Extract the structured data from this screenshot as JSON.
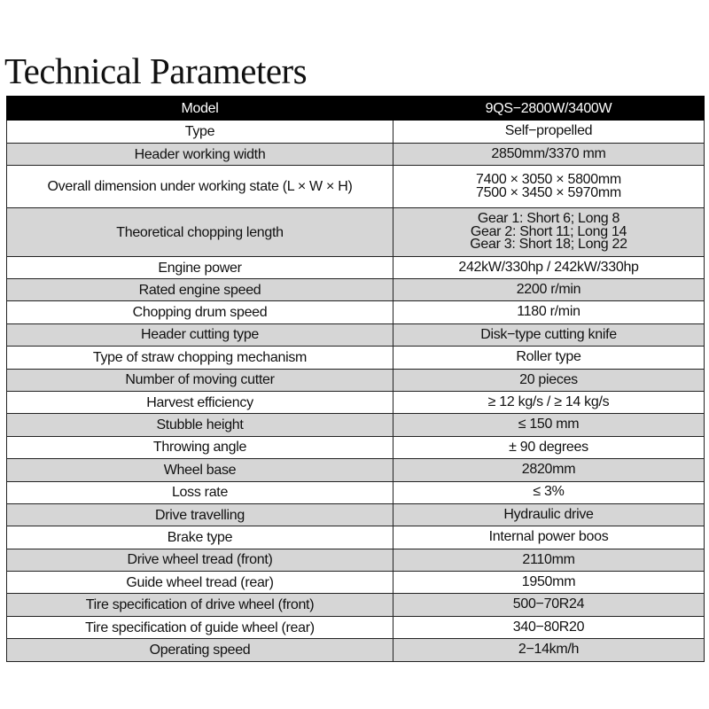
{
  "title": "Technical Parameters",
  "header": {
    "label": "Model",
    "value": "9QS−2800W/3400W"
  },
  "rows": [
    {
      "label": "Type",
      "value": [
        "Self−propelled"
      ]
    },
    {
      "label": "Header working width",
      "value": [
        "2850mm/3370 mm"
      ]
    },
    {
      "label": "Overall dimension under working state (L × W × H)",
      "value": [
        "7400 × 3050 × 5800mm",
        "7500 × 3450 × 5970mm"
      ]
    },
    {
      "label": "Theoretical chopping length",
      "value": [
        "Gear 1: Short 6; Long 8",
        "Gear 2: Short 11; Long 14",
        "Gear 3: Short 18; Long 22"
      ]
    },
    {
      "label": "Engine power",
      "value": [
        "242kW/330hp / 242kW/330hp"
      ]
    },
    {
      "label": "Rated engine speed",
      "value": [
        "2200 r/min"
      ]
    },
    {
      "label": "Chopping drum speed",
      "value": [
        "1180 r/min"
      ]
    },
    {
      "label": "Header cutting type",
      "value": [
        "Disk−type cutting knife"
      ]
    },
    {
      "label": "Type of straw chopping mechanism",
      "value": [
        "Roller type"
      ]
    },
    {
      "label": "Number of moving cutter",
      "value": [
        "20 pieces"
      ]
    },
    {
      "label": "Harvest efficiency",
      "value": [
        "≥ 12 kg/s / ≥ 14 kg/s"
      ]
    },
    {
      "label": "Stubble height",
      "value": [
        "≤ 150 mm"
      ]
    },
    {
      "label": "Throwing angle",
      "value": [
        "± 90 degrees"
      ]
    },
    {
      "label": "Wheel base",
      "value": [
        "2820mm"
      ]
    },
    {
      "label": "Loss rate",
      "value": [
        "≤ 3%"
      ]
    },
    {
      "label": "Drive travelling",
      "value": [
        "Hydraulic drive"
      ]
    },
    {
      "label": "Brake type",
      "value": [
        "Internal power boos"
      ]
    },
    {
      "label": "Drive wheel tread (front)",
      "value": [
        "2110mm"
      ]
    },
    {
      "label": "Guide wheel tread (rear)",
      "value": [
        "1950mm"
      ]
    },
    {
      "label": "Tire specification of drive wheel (front)",
      "value": [
        "500−70R24"
      ]
    },
    {
      "label": "Tire specification of guide wheel (rear)",
      "value": [
        "340−80R20"
      ]
    },
    {
      "label": "Operating speed",
      "value": [
        "2−14km/h"
      ]
    }
  ]
}
